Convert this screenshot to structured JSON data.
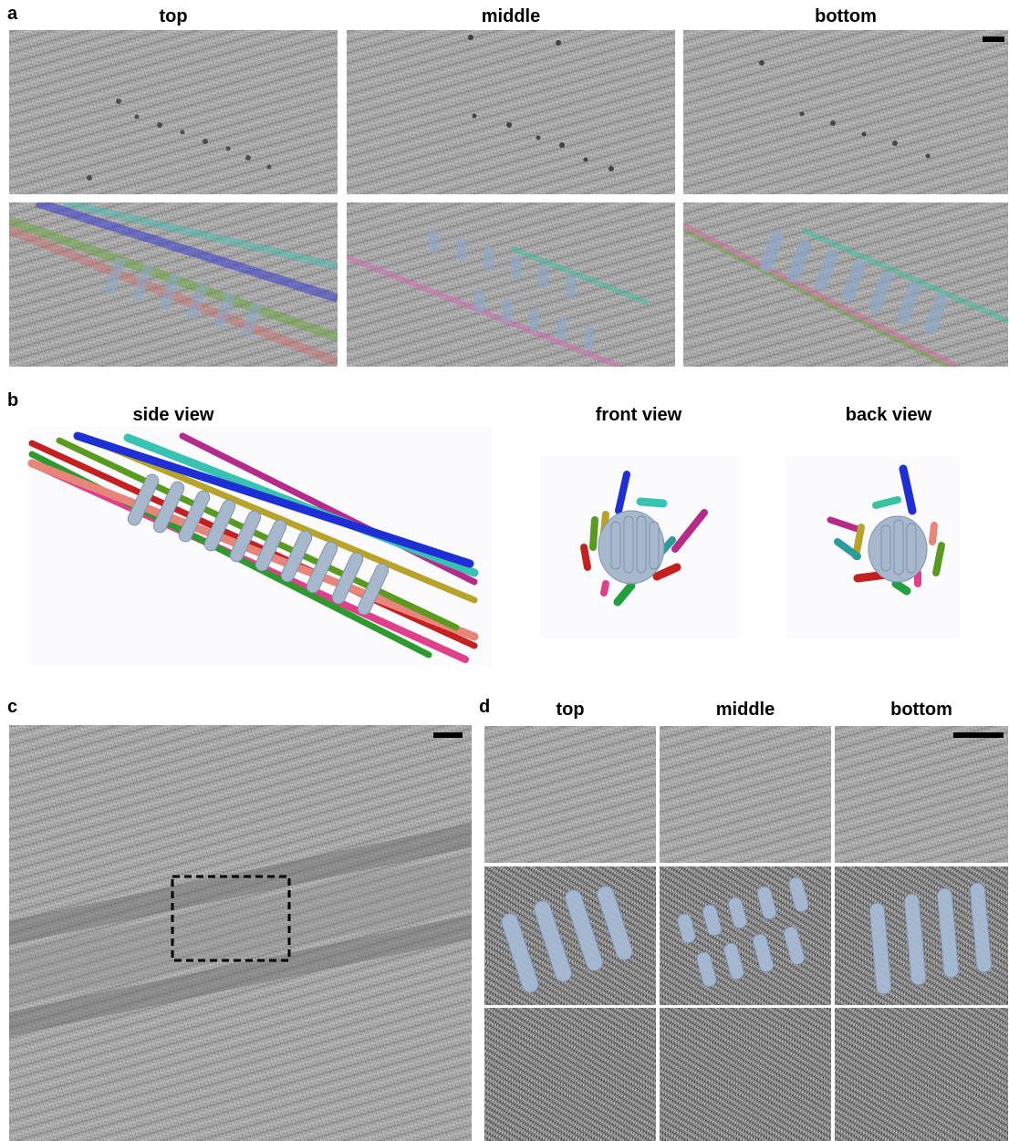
{
  "panel_a": {
    "label": "a",
    "columns": [
      "top",
      "middle",
      "bottom"
    ]
  },
  "panel_b": {
    "label": "b",
    "views": [
      "side view",
      "front view",
      "back view"
    ]
  },
  "panel_c": {
    "label": "c"
  },
  "panel_d": {
    "label": "d",
    "columns": [
      "top",
      "middle",
      "bottom"
    ]
  },
  "colors": {
    "blue": "#1f2fd6",
    "teal": "#38c2b2",
    "green": "#5a9a1e",
    "salmon": "#e8857a",
    "magenta": "#b52a8a",
    "pink": "#e0408a",
    "yellow": "#b7a22a",
    "red": "#c42020",
    "rod": "#a8b8cc"
  }
}
